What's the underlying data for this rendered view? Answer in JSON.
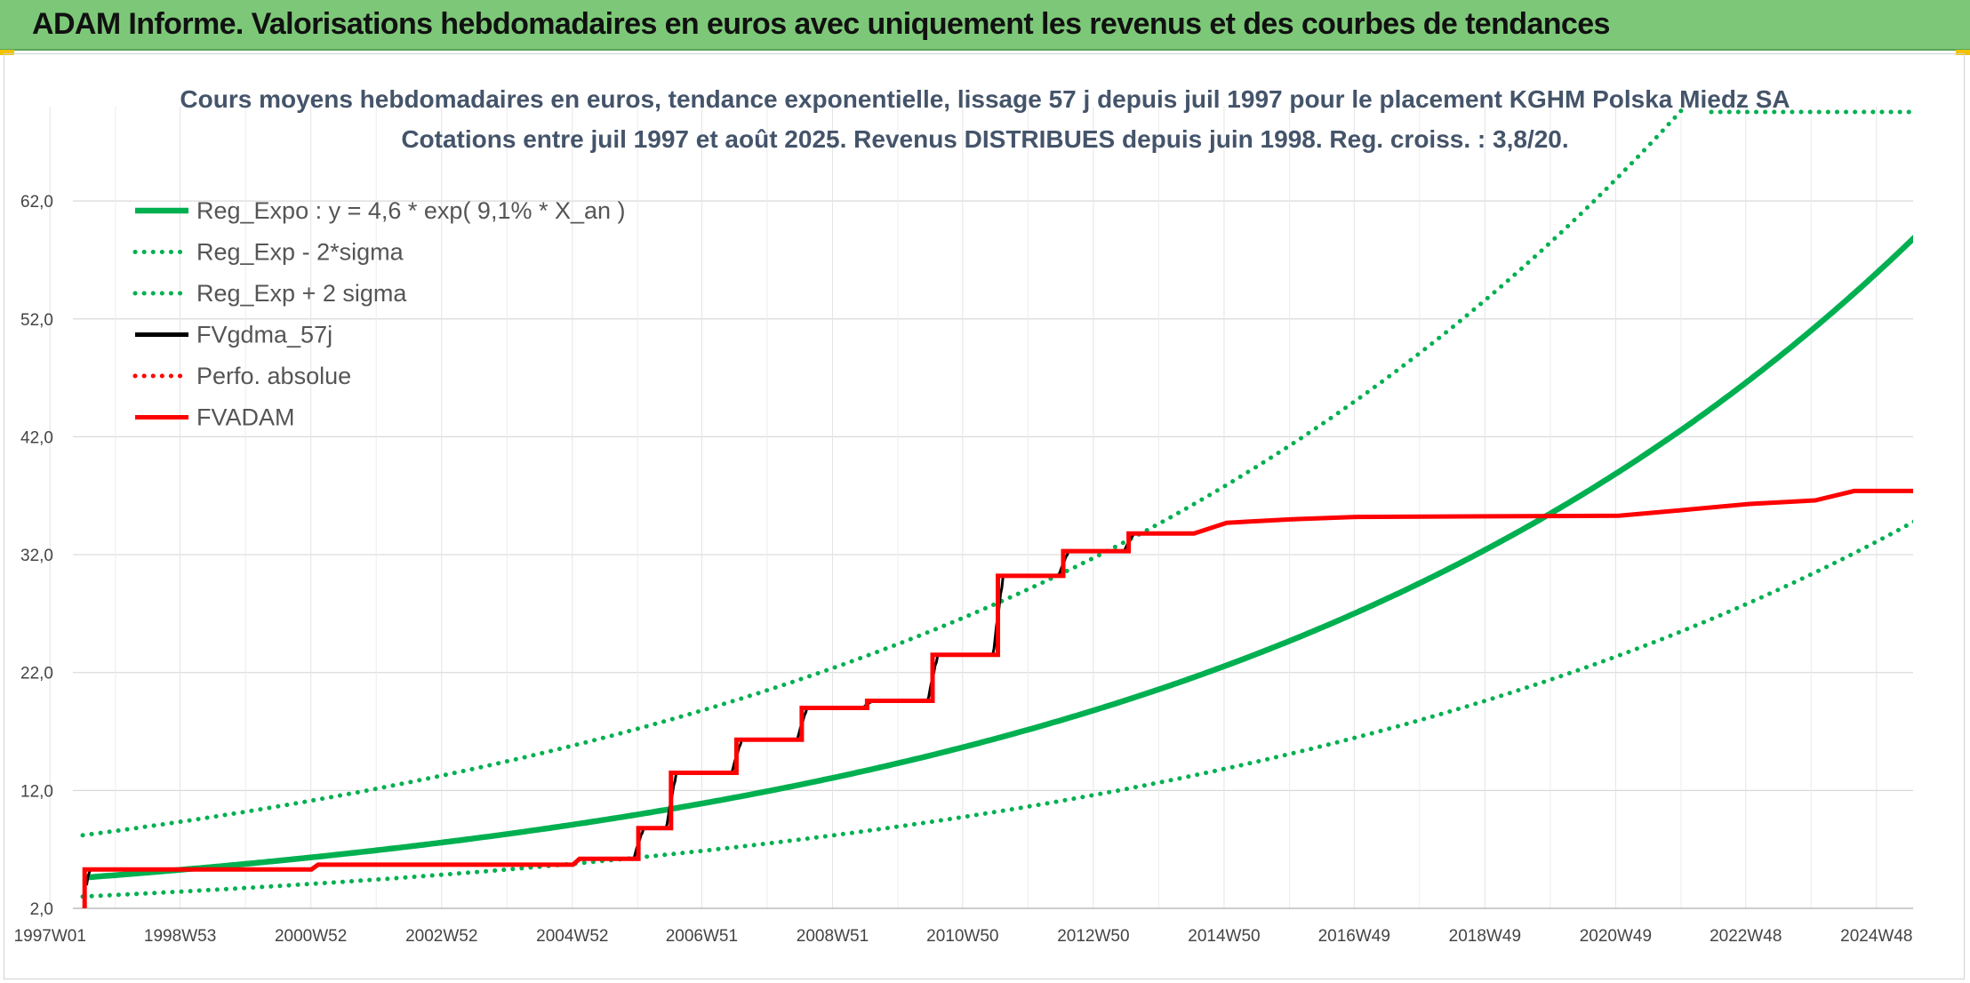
{
  "header": {
    "title": "ADAM Informe. Valorisations hebdomadaires en euros avec uniquement les revenus et des courbes de tendances"
  },
  "chart_data": {
    "type": "line",
    "title": "Cours moyens hebdomadaires en euros, tendance exponentielle, lissage 57 j depuis juil 1997 pour le placement KGHM Polska Miedz SA",
    "subtitle": "Cotations entre juil 1997 et août 2025. Revenus DISTRIBUES depuis juin 1998. Reg. croiss. : 3,8/20.",
    "xlabel": "",
    "ylabel": "",
    "x_range": [
      1997.5,
      2025.6
    ],
    "ylim": [
      2.0,
      70.0
    ],
    "yticks": [
      2.0,
      12.0,
      22.0,
      32.0,
      42.0,
      52.0,
      62.0
    ],
    "ytick_labels": [
      "2,0",
      "12,0",
      "22,0",
      "32,0",
      "42,0",
      "52,0",
      "62,0"
    ],
    "xticks": [
      1997.0,
      1998.99,
      2000.99,
      2002.99,
      2004.99,
      2006.97,
      2008.97,
      2010.96,
      2012.96,
      2014.96,
      2016.95,
      2018.95,
      2020.95,
      2022.94,
      2024.94
    ],
    "xtick_labels": [
      "1997W01",
      "1998W53",
      "2000W52",
      "2002W52",
      "2004W52",
      "2006W51",
      "2008W51",
      "2010W50",
      "2012W50",
      "2014W50",
      "2016W49",
      "2018W49",
      "2020W49",
      "2022W48",
      "2024W48"
    ],
    "grid": true,
    "legend_position": "top-left",
    "series": [
      {
        "name": "Reg_Expo : y = 4,6 * exp( 9,1% *  X_an )",
        "kind": "exp",
        "a": 4.6,
        "rate": 0.091,
        "x0": 1997.5,
        "color": "#00b050",
        "style": "solid"
      },
      {
        "name": "Reg_Exp - 2*sigma",
        "kind": "exp",
        "a": 3.0,
        "rate": 0.0875,
        "x0": 1997.5,
        "color": "#00b050",
        "style": "dotted"
      },
      {
        "name": "Reg_Exp + 2 sigma",
        "kind": "exp",
        "a": 8.2,
        "rate": 0.0875,
        "x0": 1997.5,
        "color": "#00b050",
        "style": "dotted"
      },
      {
        "name": "FVgdma_57j",
        "kind": "smooth",
        "color": "#000000",
        "style": "solid"
      },
      {
        "name": "Perfo. absolue",
        "kind": "none",
        "color": "#ff0000",
        "style": "dotted"
      },
      {
        "name": "FVADAM",
        "kind": "step",
        "color": "#ff0000",
        "style": "solid",
        "x": [
          1997.5,
          1997.53,
          1997.53,
          2001.0,
          2001.1,
          2005.0,
          2005.1,
          2006.0,
          2006.0,
          2006.5,
          2006.5,
          2007.5,
          2007.5,
          2008.5,
          2008.5,
          2009.5,
          2009.5,
          2010.5,
          2010.5,
          2011.5,
          2011.5,
          2012.5,
          2012.5,
          2013.5,
          2013.5,
          2014.5,
          2015.0,
          2016.0,
          2017.0,
          2021.0,
          2022.0,
          2023.0,
          2024.0,
          2024.6,
          2025.6
        ],
        "values": [
          0.5,
          2.0,
          5.3,
          5.3,
          5.7,
          5.7,
          6.2,
          6.2,
          8.8,
          8.8,
          13.5,
          13.5,
          16.3,
          16.3,
          19.0,
          19.0,
          19.6,
          19.6,
          23.5,
          23.5,
          30.2,
          30.2,
          32.3,
          32.3,
          33.8,
          33.8,
          34.7,
          35.0,
          35.2,
          35.3,
          35.8,
          36.3,
          36.6,
          37.4,
          37.4
        ]
      }
    ]
  }
}
